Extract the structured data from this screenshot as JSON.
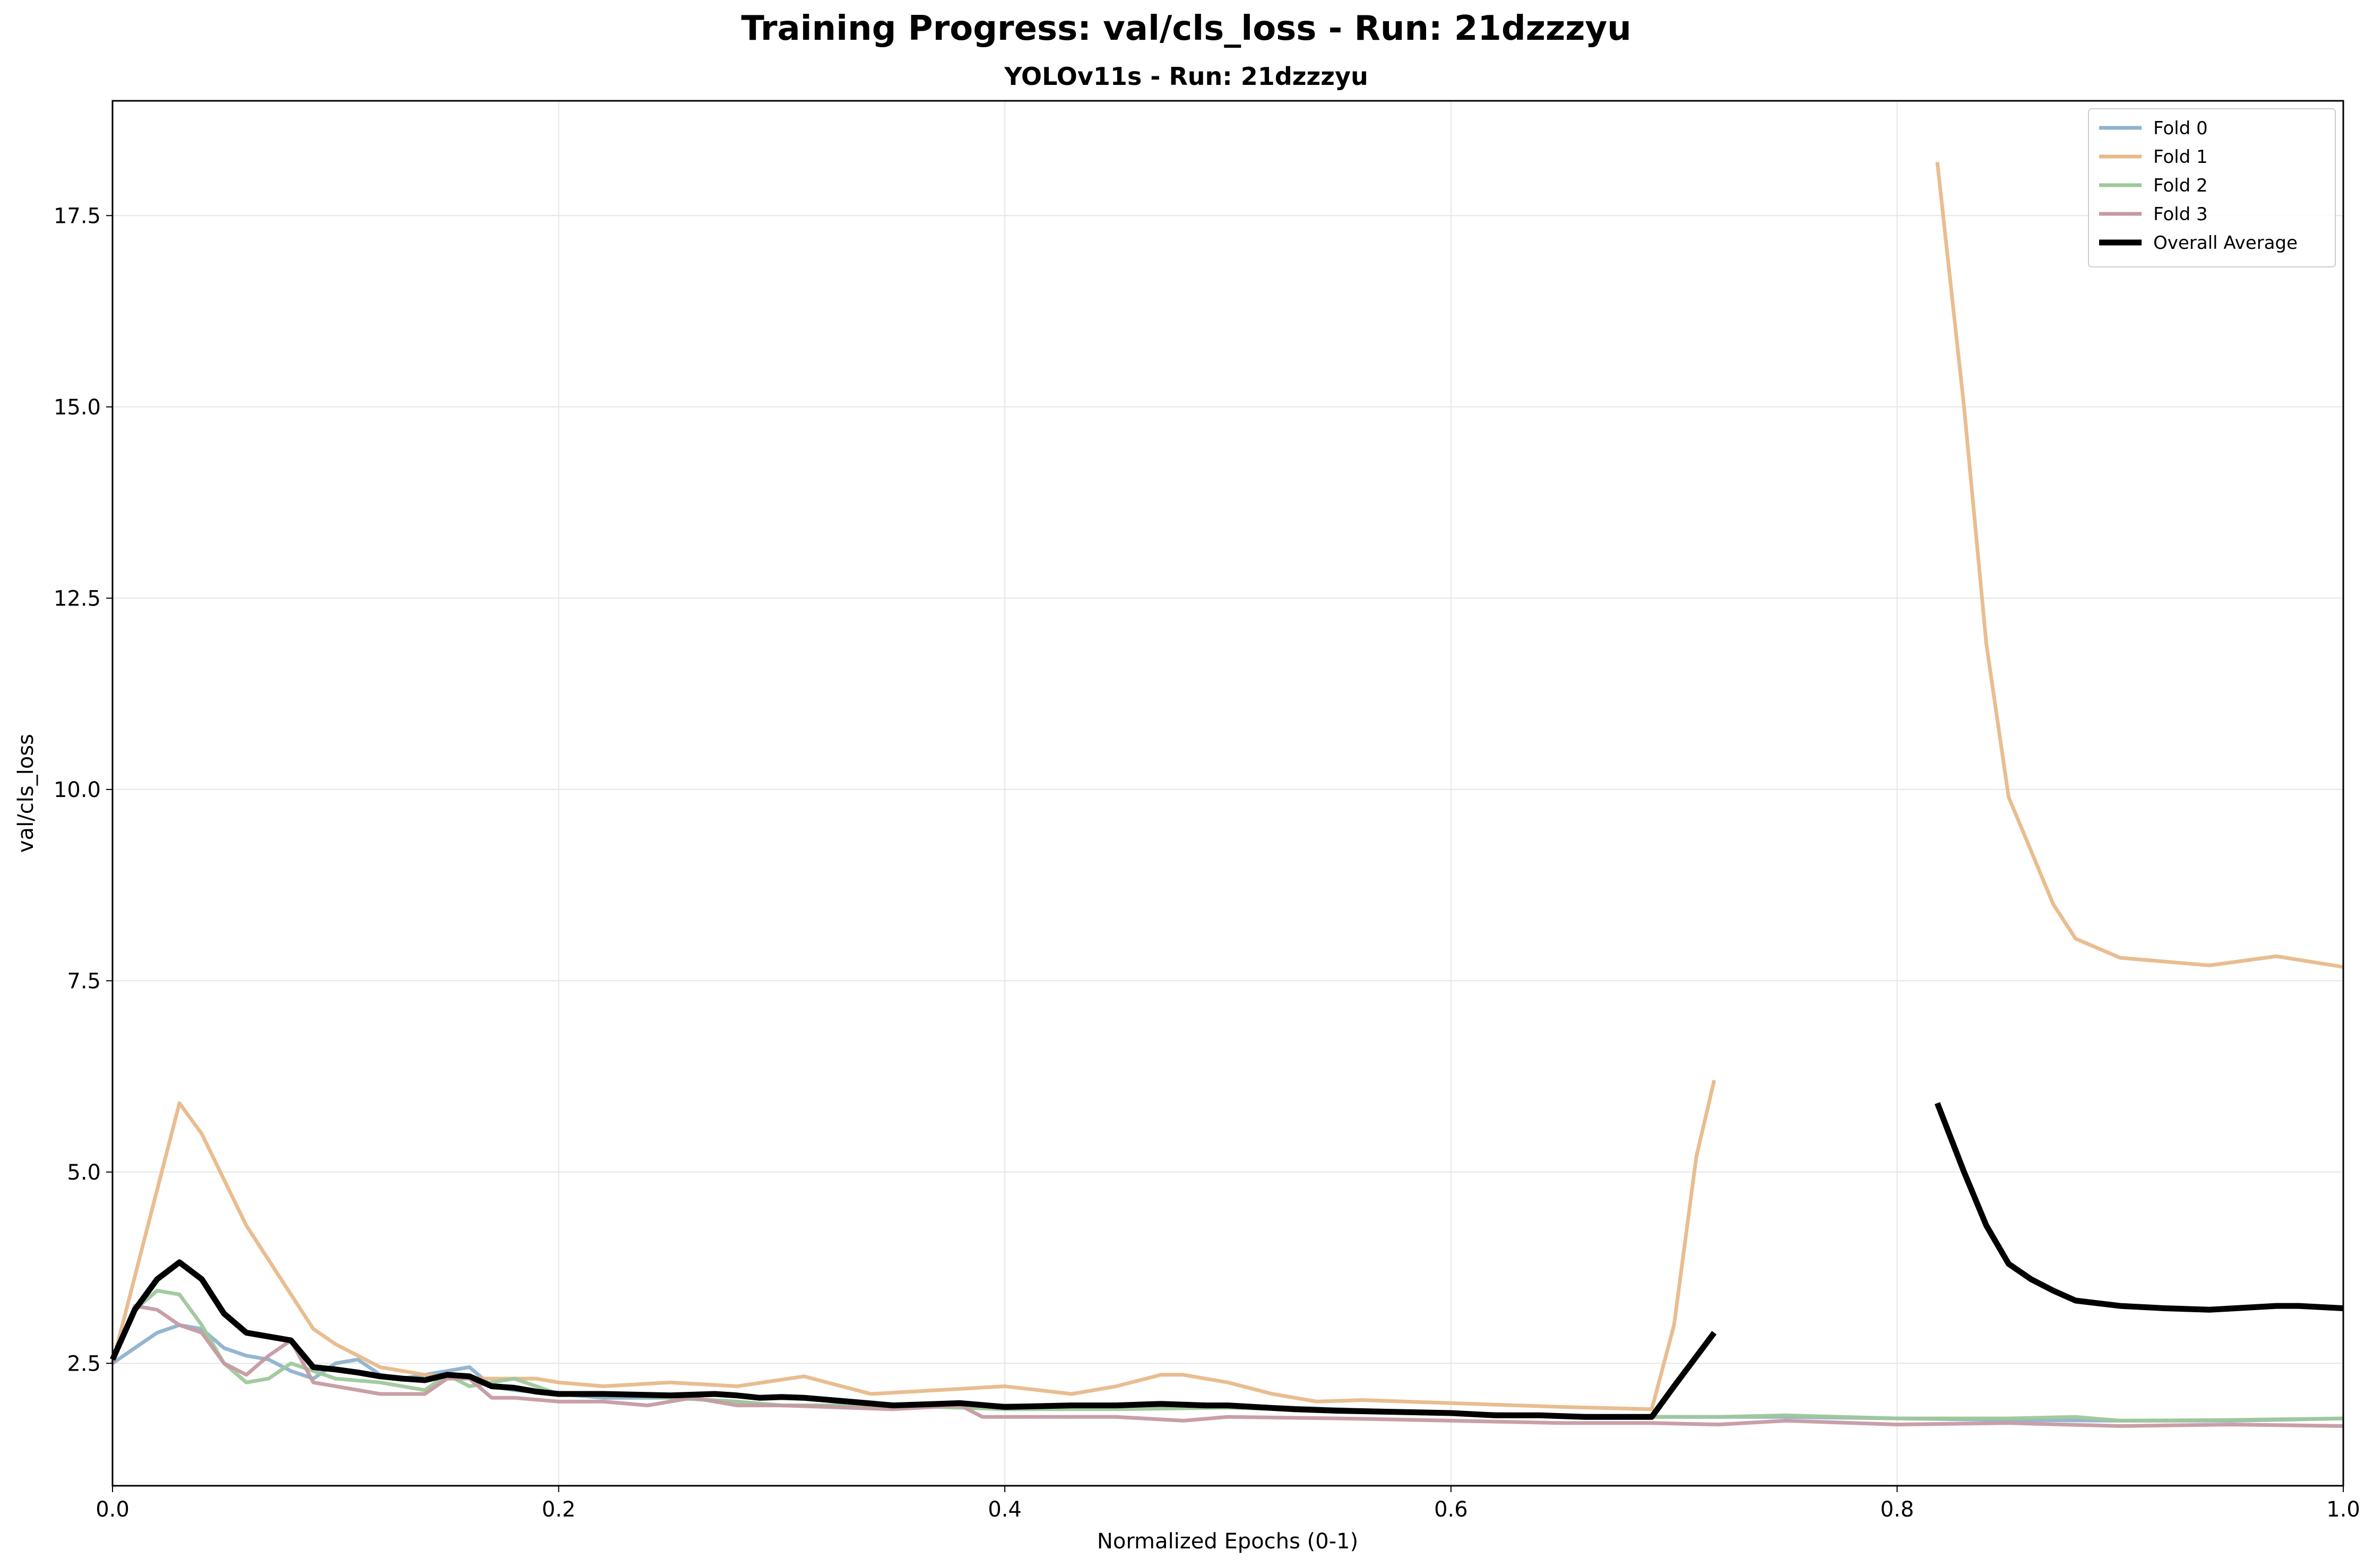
{
  "chart_data": {
    "type": "line",
    "title": "Training Progress: val/cls_loss - Run: 21dzzzyu",
    "subtitle": "YOLOv11s - Run: 21dzzzyu",
    "xlabel": "Normalized Epochs (0-1)",
    "ylabel": "val/cls_loss",
    "xlim": [
      0,
      1
    ],
    "ylim": [
      0.9,
      19.0
    ],
    "xticks": [
      0.0,
      0.2,
      0.4,
      0.6,
      0.8,
      1.0
    ],
    "xtick_labels": [
      "0.0",
      "0.2",
      "0.4",
      "0.6",
      "0.8",
      "1.0"
    ],
    "yticks": [
      2.5,
      5.0,
      7.5,
      10.0,
      12.5,
      15.0,
      17.5
    ],
    "ytick_labels": [
      "2.5",
      "5.0",
      "7.5",
      "10.0",
      "12.5",
      "15.0",
      "17.5"
    ],
    "grid": true,
    "legend_position": "top-right",
    "series": [
      {
        "name": "Fold 0",
        "color": "#8fb2cf",
        "segments": [
          {
            "x": [
              0,
              0.01,
              0.02,
              0.03,
              0.04,
              0.05,
              0.06,
              0.07,
              0.08,
              0.09,
              0.1,
              0.11,
              0.12,
              0.13,
              0.14,
              0.15,
              0.16,
              0.17,
              0.18,
              0.2,
              0.22,
              0.25,
              0.28,
              0.3,
              0.35,
              0.4,
              0.45,
              0.5,
              0.55,
              0.6,
              0.65,
              0.69,
              0.72,
              0.75,
              0.8,
              0.85,
              0.9,
              0.95,
              1.0
            ],
            "y": [
              2.5,
              2.7,
              2.9,
              3.0,
              2.95,
              2.7,
              2.6,
              2.55,
              2.4,
              2.3,
              2.5,
              2.55,
              2.35,
              2.3,
              2.35,
              2.4,
              2.45,
              2.2,
              2.15,
              2.1,
              2.05,
              2.05,
              2.0,
              1.95,
              1.95,
              1.95,
              1.95,
              1.95,
              1.9,
              1.85,
              1.8,
              1.8,
              1.8,
              1.8,
              1.78,
              1.76,
              1.75,
              1.75,
              1.78
            ]
          }
        ]
      },
      {
        "name": "Fold 1",
        "color": "#e8b98a",
        "segments": [
          {
            "x": [
              0,
              0.015,
              0.03,
              0.04,
              0.05,
              0.06,
              0.08,
              0.09,
              0.1,
              0.12,
              0.14,
              0.16,
              0.18,
              0.19,
              0.2,
              0.22,
              0.25,
              0.28,
              0.31,
              0.34,
              0.37,
              0.4,
              0.43,
              0.45,
              0.47,
              0.48,
              0.5,
              0.52,
              0.54,
              0.56,
              0.6,
              0.65,
              0.69,
              0.7,
              0.71,
              0.718
            ],
            "y": [
              2.5,
              4.2,
              5.9,
              5.5,
              4.9,
              4.3,
              3.4,
              2.95,
              2.75,
              2.45,
              2.35,
              2.3,
              2.3,
              2.3,
              2.25,
              2.2,
              2.25,
              2.2,
              2.33,
              2.1,
              2.15,
              2.2,
              2.1,
              2.2,
              2.35,
              2.35,
              2.25,
              2.1,
              2.0,
              2.02,
              1.98,
              1.93,
              1.9,
              3.0,
              5.2,
              6.2
            ]
          },
          {
            "x": [
              0.818,
              0.83,
              0.84,
              0.85,
              0.86,
              0.87,
              0.88,
              0.9,
              0.92,
              0.94,
              0.97,
              1.0
            ],
            "y": [
              18.2,
              15.0,
              11.9,
              9.9,
              9.2,
              8.5,
              8.05,
              7.8,
              7.75,
              7.7,
              7.82,
              7.68
            ]
          }
        ]
      },
      {
        "name": "Fold 2",
        "color": "#9ec89a",
        "segments": [
          {
            "x": [
              0,
              0.01,
              0.02,
              0.03,
              0.04,
              0.05,
              0.06,
              0.07,
              0.08,
              0.09,
              0.1,
              0.12,
              0.14,
              0.15,
              0.16,
              0.17,
              0.18,
              0.2,
              0.22,
              0.25,
              0.28,
              0.3,
              0.35,
              0.4,
              0.45,
              0.5,
              0.55,
              0.6,
              0.65,
              0.69,
              0.72,
              0.75,
              0.8,
              0.85,
              0.88,
              0.9,
              0.95,
              1.0
            ],
            "y": [
              2.5,
              3.2,
              3.45,
              3.4,
              3.0,
              2.5,
              2.25,
              2.3,
              2.5,
              2.4,
              2.3,
              2.25,
              2.15,
              2.35,
              2.2,
              2.25,
              2.3,
              2.1,
              2.1,
              2.05,
              2.0,
              1.95,
              1.95,
              1.9,
              1.9,
              1.92,
              1.88,
              1.85,
              1.82,
              1.8,
              1.8,
              1.82,
              1.78,
              1.78,
              1.8,
              1.75,
              1.76,
              1.78
            ]
          }
        ]
      },
      {
        "name": "Fold 3",
        "color": "#c69aa2",
        "segments": [
          {
            "x": [
              0,
              0.01,
              0.02,
              0.03,
              0.04,
              0.05,
              0.06,
              0.07,
              0.08,
              0.09,
              0.1,
              0.12,
              0.14,
              0.15,
              0.16,
              0.17,
              0.18,
              0.2,
              0.22,
              0.24,
              0.26,
              0.28,
              0.3,
              0.35,
              0.38,
              0.39,
              0.4,
              0.45,
              0.48,
              0.5,
              0.55,
              0.6,
              0.65,
              0.69,
              0.72,
              0.75,
              0.8,
              0.85,
              0.9,
              0.95,
              1.0
            ],
            "y": [
              2.5,
              3.25,
              3.2,
              3.0,
              2.9,
              2.5,
              2.35,
              2.6,
              2.8,
              2.25,
              2.2,
              2.1,
              2.1,
              2.3,
              2.3,
              2.05,
              2.05,
              2.0,
              2.0,
              1.95,
              2.05,
              1.95,
              1.95,
              1.9,
              1.95,
              1.8,
              1.8,
              1.8,
              1.75,
              1.8,
              1.78,
              1.75,
              1.72,
              1.72,
              1.7,
              1.75,
              1.7,
              1.72,
              1.68,
              1.7,
              1.68
            ]
          }
        ]
      },
      {
        "name": "Overall Average",
        "color": "#000000",
        "segments": [
          {
            "x": [
              0,
              0.01,
              0.02,
              0.03,
              0.04,
              0.05,
              0.06,
              0.07,
              0.08,
              0.09,
              0.1,
              0.11,
              0.12,
              0.13,
              0.14,
              0.15,
              0.16,
              0.17,
              0.18,
              0.19,
              0.2,
              0.22,
              0.25,
              0.27,
              0.28,
              0.29,
              0.3,
              0.31,
              0.33,
              0.35,
              0.38,
              0.4,
              0.43,
              0.45,
              0.47,
              0.49,
              0.5,
              0.53,
              0.55,
              0.6,
              0.62,
              0.64,
              0.66,
              0.69,
              0.7,
              0.718
            ],
            "y": [
              2.55,
              3.2,
              3.6,
              3.82,
              3.6,
              3.15,
              2.9,
              2.85,
              2.8,
              2.45,
              2.42,
              2.38,
              2.33,
              2.3,
              2.28,
              2.35,
              2.33,
              2.2,
              2.18,
              2.13,
              2.1,
              2.1,
              2.08,
              2.1,
              2.08,
              2.05,
              2.06,
              2.05,
              2.0,
              1.95,
              1.98,
              1.93,
              1.95,
              1.95,
              1.97,
              1.95,
              1.95,
              1.9,
              1.88,
              1.85,
              1.82,
              1.82,
              1.8,
              1.8,
              2.2,
              2.9
            ]
          },
          {
            "x": [
              0.818,
              0.83,
              0.84,
              0.85,
              0.86,
              0.87,
              0.88,
              0.9,
              0.92,
              0.94,
              0.97,
              0.98,
              1.0
            ],
            "y": [
              5.9,
              5.0,
              4.3,
              3.8,
              3.6,
              3.45,
              3.32,
              3.25,
              3.22,
              3.2,
              3.25,
              3.25,
              3.22
            ]
          }
        ]
      }
    ]
  }
}
